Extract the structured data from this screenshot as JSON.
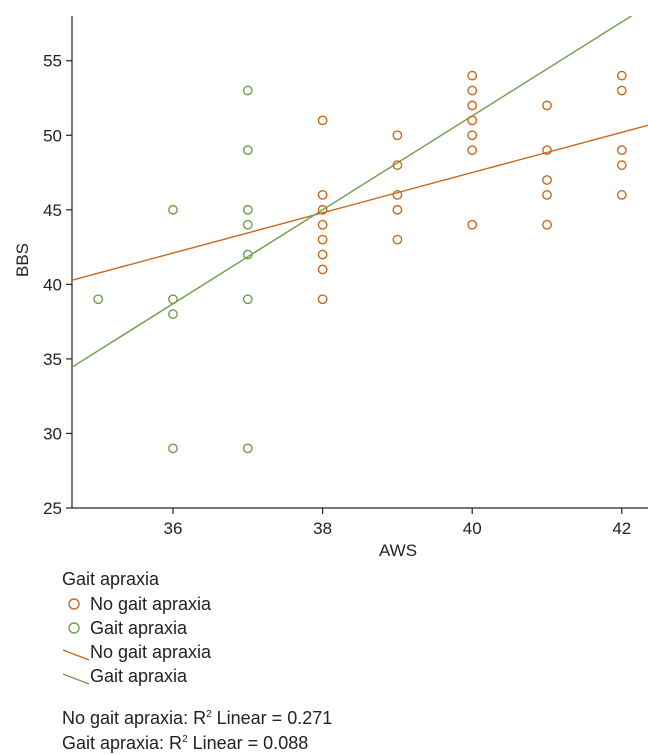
{
  "chart_data": {
    "type": "scatter",
    "xlabel": "AWS",
    "ylabel": "BBS",
    "xlim": [
      34.65,
      42.35
    ],
    "ylim": [
      25,
      58
    ],
    "xticks": [
      "36",
      "38",
      "40",
      "42"
    ],
    "yticks": [
      "25",
      "30",
      "35",
      "40",
      "45",
      "50",
      "55"
    ],
    "grid": false,
    "legend_title": "Gait apraxia",
    "series": [
      {
        "name": "No gait apraxia",
        "color": "#c8691f",
        "points": [
          [
            38,
            51
          ],
          [
            38,
            46
          ],
          [
            38,
            45
          ],
          [
            38,
            44
          ],
          [
            38,
            43
          ],
          [
            38,
            42
          ],
          [
            38,
            41
          ],
          [
            38,
            39
          ],
          [
            39,
            50
          ],
          [
            39,
            48
          ],
          [
            39,
            46
          ],
          [
            39,
            45
          ],
          [
            39,
            43
          ],
          [
            40,
            54
          ],
          [
            40,
            53
          ],
          [
            40,
            52
          ],
          [
            40,
            51
          ],
          [
            40,
            50
          ],
          [
            40,
            49
          ],
          [
            40,
            44
          ],
          [
            41,
            52
          ],
          [
            41,
            49
          ],
          [
            41,
            47
          ],
          [
            41,
            46
          ],
          [
            41,
            44
          ],
          [
            42,
            54
          ],
          [
            42,
            53
          ],
          [
            42,
            49
          ],
          [
            42,
            48
          ],
          [
            42,
            46
          ]
        ],
        "fit": {
          "slope": 1.35,
          "intercept": -6.5
        }
      },
      {
        "name": "Gait apraxia",
        "color": "#6f9e4a",
        "points": [
          [
            35,
            39
          ],
          [
            36,
            45
          ],
          [
            36,
            39
          ],
          [
            36,
            38
          ],
          [
            36,
            29
          ],
          [
            37,
            53
          ],
          [
            37,
            49
          ],
          [
            37,
            45
          ],
          [
            37,
            44
          ],
          [
            37,
            42
          ],
          [
            37,
            39
          ],
          [
            37,
            29
          ]
        ],
        "fit": {
          "slope": 3.15,
          "intercept": -74.7
        }
      }
    ],
    "legend_items": [
      {
        "label": "No gait apraxia",
        "kind": "marker",
        "color": "#c8691f"
      },
      {
        "label": "Gait apraxia",
        "kind": "marker",
        "color": "#6f9e4a"
      },
      {
        "label": "No gait apraxia",
        "kind": "line",
        "color": "#c8691f"
      },
      {
        "label": "Gait apraxia",
        "kind": "line",
        "color": "#6f9e4a"
      }
    ],
    "fit_notes": {
      "no_gait": {
        "prefix": "No gait apraxia: R",
        "sup": "2",
        "suffix": " Linear = 0.271"
      },
      "gait": {
        "prefix": "Gait apraxia: R",
        "sup": "2",
        "suffix": " Linear = 0.088"
      }
    }
  }
}
